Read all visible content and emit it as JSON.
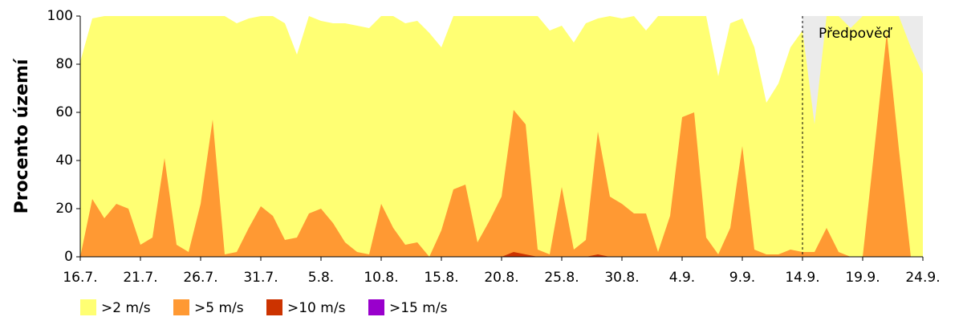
{
  "chart_data": {
    "type": "area",
    "y_label": "Procento území",
    "annotation": "Předpověď",
    "forecast_start": 60,
    "forecast_color": "#ebebeb",
    "categories": [
      "16.7.",
      null,
      null,
      null,
      null,
      "21.7.",
      null,
      null,
      null,
      null,
      "26.7.",
      null,
      null,
      null,
      null,
      "31.7.",
      null,
      null,
      null,
      null,
      "5.8.",
      null,
      null,
      null,
      null,
      "10.8.",
      null,
      null,
      null,
      null,
      "15.8.",
      null,
      null,
      null,
      null,
      "20.8.",
      null,
      null,
      null,
      null,
      "25.8.",
      null,
      null,
      null,
      null,
      "30.8.",
      null,
      null,
      null,
      null,
      "4.9.",
      null,
      null,
      null,
      null,
      "9.9.",
      null,
      null,
      null,
      null,
      "14.9.",
      null,
      null,
      null,
      null,
      "19.9.",
      null,
      null,
      null,
      null,
      "24.9."
    ],
    "series": [
      {
        "name": ">2 m/s",
        "color": "#ffff73",
        "values": [
          81,
          99,
          100,
          100,
          100,
          100,
          100,
          100,
          100,
          100,
          100,
          100,
          100,
          97,
          99,
          100,
          100,
          97,
          84,
          100,
          98,
          97,
          97,
          96,
          95,
          100,
          100,
          97,
          98,
          93,
          87,
          100,
          100,
          100,
          100,
          100,
          100,
          100,
          100,
          94,
          96,
          89,
          97,
          99,
          100,
          99,
          100,
          94,
          100,
          100,
          100,
          100,
          100,
          75,
          97,
          99,
          87,
          64,
          72,
          87,
          94,
          55,
          100,
          100,
          95,
          100,
          100,
          100,
          100,
          87,
          76
        ]
      },
      {
        "name": ">5 m/s",
        "color": "#ff9933",
        "values": [
          0,
          24,
          16,
          22,
          20,
          5,
          8,
          41,
          5,
          2,
          22,
          57,
          1,
          2,
          12,
          21,
          17,
          7,
          8,
          18,
          20,
          14,
          6,
          2,
          1,
          22,
          12,
          5,
          6,
          0,
          11,
          28,
          30,
          6,
          15,
          25,
          61,
          55,
          3,
          1,
          29,
          3,
          7,
          52,
          25,
          22,
          18,
          18,
          2,
          17,
          58,
          60,
          8,
          1,
          12,
          46,
          3,
          1,
          1,
          3,
          2,
          2,
          12,
          2,
          0,
          0,
          46,
          93,
          45,
          0,
          0
        ]
      },
      {
        "name": ">10 m/s",
        "color": "#cc3300",
        "values": [
          0,
          0,
          0,
          0,
          0,
          0,
          0,
          0,
          0,
          0,
          0,
          0,
          0,
          0,
          0,
          0,
          0,
          0,
          0,
          0,
          0,
          0,
          0,
          0,
          0,
          0,
          0,
          0,
          0,
          0,
          0,
          0,
          0,
          0,
          0,
          0,
          2,
          1,
          0,
          0,
          0,
          0,
          0,
          1,
          0,
          0,
          0,
          0,
          0,
          0,
          0,
          0,
          0,
          0,
          0,
          0,
          0,
          0,
          0,
          0,
          0,
          0,
          0,
          0,
          0,
          0,
          0,
          0,
          0,
          0,
          0
        ]
      },
      {
        "name": ">15 m/s",
        "color": "#9900cc",
        "values": [
          0,
          0,
          0,
          0,
          0,
          0,
          0,
          0,
          0,
          0,
          0,
          0,
          0,
          0,
          0,
          0,
          0,
          0,
          0,
          0,
          0,
          0,
          0,
          0,
          0,
          0,
          0,
          0,
          0,
          0,
          0,
          0,
          0,
          0,
          0,
          0,
          0,
          0,
          0,
          0,
          0,
          0,
          0,
          0,
          0,
          0,
          0,
          0,
          0,
          0,
          0,
          0,
          0,
          0,
          0,
          0,
          0,
          0,
          0,
          0,
          0,
          0,
          0,
          0,
          0,
          0,
          0,
          0,
          0,
          0,
          0
        ]
      }
    ],
    "ylim": [
      0,
      100
    ],
    "yticks": [
      0,
      20,
      40,
      60,
      80,
      100
    ]
  }
}
